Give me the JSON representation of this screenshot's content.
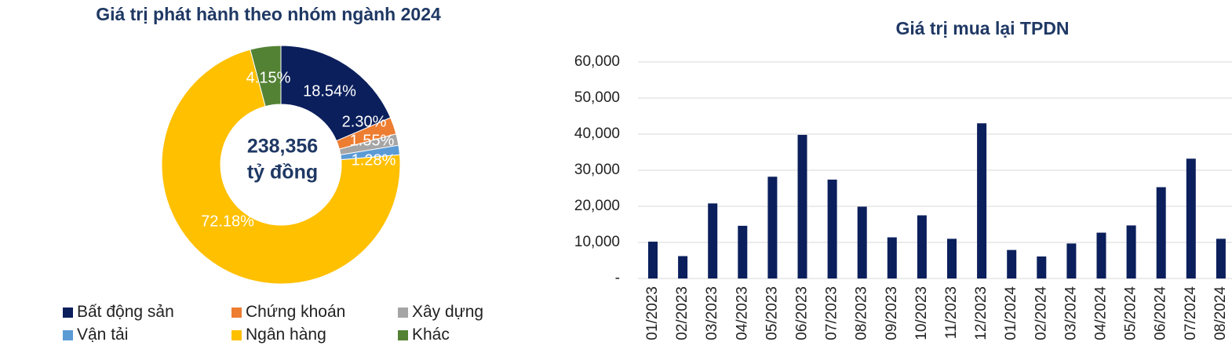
{
  "chart_data": [
    {
      "type": "pie",
      "variant": "donut",
      "title": "Giá trị phát hành theo nhóm ngành 2024",
      "center_label": [
        "238,356",
        "tỷ đồng"
      ],
      "slices": [
        {
          "name": "Bất động sản",
          "value": 18.54,
          "label": "18.54%",
          "color": "#0b1f5c"
        },
        {
          "name": "Chứng khoán",
          "value": 2.3,
          "label": "2.30%",
          "color": "#ed7d31"
        },
        {
          "name": "Xây dựng",
          "value": 1.55,
          "label": "1.55%",
          "color": "#a5a5a5"
        },
        {
          "name": "Vận tải",
          "value": 1.28,
          "label": "1.28%",
          "color": "#5b9bd5"
        },
        {
          "name": "Ngân hàng",
          "value": 72.18,
          "label": "72.18%",
          "color": "#ffc000"
        },
        {
          "name": "Khác",
          "value": 4.15,
          "label": "4.15%",
          "color": "#548235"
        }
      ],
      "legend_position": "bottom"
    },
    {
      "type": "bar",
      "title": "Giá trị mua lại TPDN",
      "categories": [
        "01/2023",
        "02/2023",
        "03/2023",
        "04/2023",
        "05/2023",
        "06/2023",
        "07/2023",
        "08/2023",
        "09/2023",
        "10/2023",
        "11/2023",
        "12/2023",
        "01/2024",
        "02/2024",
        "03/2024",
        "04/2024",
        "05/2024",
        "06/2024",
        "07/2024",
        "08/2024"
      ],
      "values": [
        10200,
        6200,
        20800,
        14600,
        28200,
        39800,
        27400,
        19900,
        11400,
        17500,
        11000,
        43000,
        7900,
        6100,
        9700,
        12700,
        14700,
        25300,
        33200,
        11000
      ],
      "ylim": [
        0,
        60000
      ],
      "yticks": [
        0,
        10000,
        20000,
        30000,
        40000,
        50000,
        60000
      ],
      "ytick_labels": [
        "-",
        "10,000",
        "20,000",
        "30,000",
        "40,000",
        "50,000",
        "60,000"
      ],
      "grid": true,
      "bar_color": "#0b1f5c"
    }
  ]
}
